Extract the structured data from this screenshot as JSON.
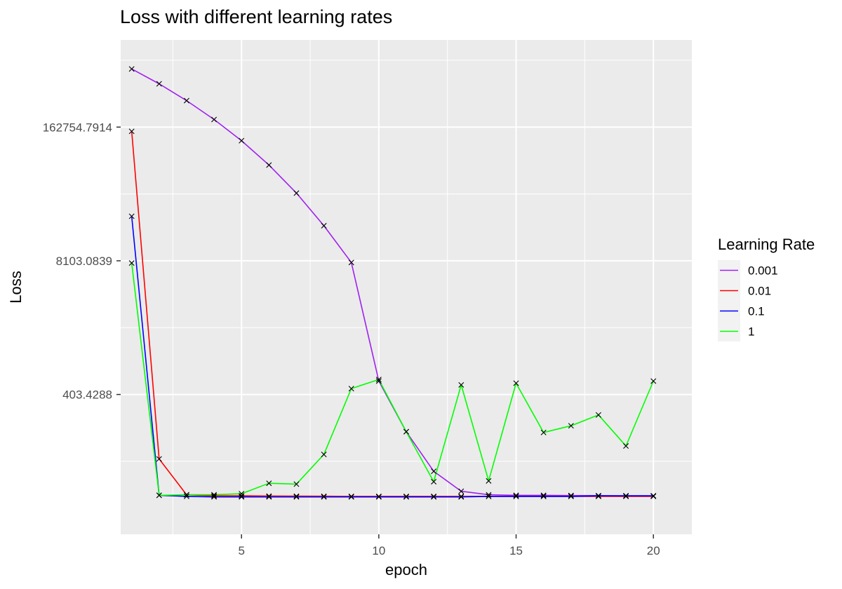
{
  "chart_data": {
    "type": "line",
    "title": "Loss with different learning rates",
    "xlabel": "epoch",
    "ylabel": "Loss",
    "y_scale": "log",
    "xlim": [
      0.6,
      21.4
    ],
    "ylim": [
      17.5,
      1150000
    ],
    "x_ticks": [
      5,
      10,
      15,
      20
    ],
    "x_tick_labels": [
      "5",
      "10",
      "15",
      "20"
    ],
    "y_ticks": [
      403.4288,
      8103.0839,
      162754.7914
    ],
    "y_tick_labels": [
      "403.4288",
      "8103.0839",
      "162754.7914"
    ],
    "grid": true,
    "marker": "x",
    "legend": {
      "title": "Learning Rate",
      "position": "right"
    },
    "x": [
      1,
      2,
      3,
      4,
      5,
      6,
      7,
      8,
      9,
      10,
      11,
      12,
      13,
      14,
      15,
      16,
      17,
      18,
      19,
      20
    ],
    "series": [
      {
        "name": "0.001",
        "color": "#a020f0",
        "values": [
          600000,
          430000,
          295000,
          193000,
          120000,
          69500,
          37000,
          17800,
          7800,
          545,
          175,
          72,
          46,
          42.5,
          42,
          42,
          41.8,
          41.7,
          41.6,
          41.5
        ]
      },
      {
        "name": "0.01",
        "color": "#ff0000",
        "values": [
          148000,
          95,
          42.5,
          41.5,
          41.5,
          41.3,
          41.2,
          41.1,
          41,
          41,
          41,
          41,
          41,
          41,
          41,
          41,
          41,
          41,
          41,
          41
        ]
      },
      {
        "name": "0.1",
        "color": "#0000ff",
        "values": [
          22000,
          42,
          41,
          40.5,
          40.5,
          40.5,
          40.5,
          40.5,
          40.5,
          40.5,
          40.5,
          40.5,
          40.5,
          41,
          41,
          41,
          41,
          41.5,
          41.5,
          41.5
        ]
      },
      {
        "name": "1",
        "color": "#00ff00",
        "values": [
          7700,
          42,
          42.5,
          42.5,
          43.5,
          55,
          54,
          105,
          460,
          565,
          175,
          57,
          500,
          58,
          520,
          172,
          200,
          255,
          127,
          545
        ]
      }
    ]
  }
}
